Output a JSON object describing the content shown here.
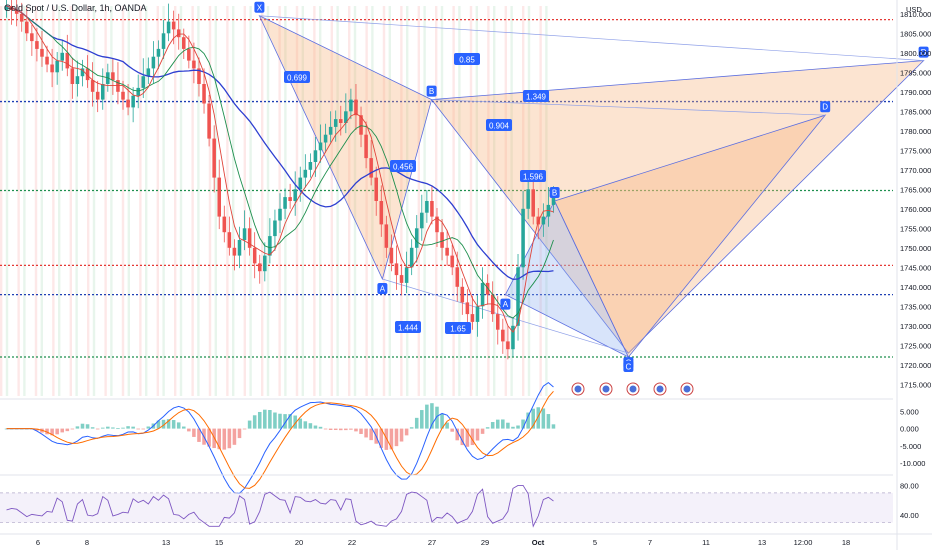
{
  "header": {
    "title": "Gold Spot / U.S. Dollar, 1h, OANDA",
    "currency": "USD"
  },
  "colors": {
    "up_candle": "#26a69a",
    "down_candle": "#ef5350",
    "ma_blue": "#2e3fd1",
    "ma_green": "#1e8f4e",
    "ma_red": "#e0443a",
    "pattern_orange": "#f7b27a",
    "pattern_blue": "#8fb3f0",
    "label_bg": "#2962ff",
    "rsi_line": "#7e57c2",
    "macd_line": "#2962ff",
    "signal_line": "#ff6d00"
  },
  "chart_data": {
    "type": "candlestick",
    "price_axis": {
      "ticks": [
        1810,
        1805,
        1800,
        1795,
        1790,
        1785,
        1780,
        1775,
        1770,
        1765,
        1760,
        1755,
        1750,
        1745,
        1740,
        1735,
        1730,
        1725,
        1720,
        1715
      ],
      "tick_labels": [
        "1810.000",
        "1805.000",
        "1800.000",
        "1795.000",
        "1790.000",
        "1785.000",
        "1780.000",
        "1775.000",
        "1770.000",
        "1765.000",
        "1760.000",
        "1755.000",
        "1750.000",
        "1745.000",
        "1740.000",
        "1735.000",
        "1730.000",
        "1725.000",
        "1720.000",
        "1715.000"
      ],
      "ylim": [
        1712,
        1812
      ]
    },
    "time_axis": {
      "labels": [
        "6",
        "8",
        "13",
        "15",
        "20",
        "22",
        "27",
        "29",
        "Oct",
        "5",
        "7",
        "11",
        "13",
        "12:00",
        "18"
      ]
    },
    "horizontal_levels": [
      {
        "price": 1808.5,
        "color": "#e53935"
      },
      {
        "price": 1787.5,
        "color": "#1e3fb4"
      },
      {
        "price": 1764.7,
        "color": "#1e8f4e"
      },
      {
        "price": 1745.5,
        "color": "#e53935"
      },
      {
        "price": 1738.0,
        "color": "#1e3fb4"
      },
      {
        "price": 1722.0,
        "color": "#1e8f4e"
      }
    ],
    "harmonic_points": [
      {
        "label": "X",
        "price": 1809.5,
        "time_index": 15
      },
      {
        "label": "A",
        "price": 1742.0,
        "time_index": 20
      },
      {
        "label": "B",
        "price": 1788.0,
        "time_index": 22
      },
      {
        "label": "C",
        "price": 1723.0,
        "time_index": 30
      },
      {
        "label": "D",
        "price": 1798.0,
        "time_index": 42
      },
      {
        "label": "A",
        "price": 1738.0,
        "time_index": 25
      },
      {
        "label": "B",
        "price": 1762.0,
        "time_index": 27
      },
      {
        "label": "C",
        "price": 1722.0,
        "time_index": 30
      },
      {
        "label": "D",
        "price": 1784.0,
        "time_index": 38
      }
    ],
    "ratio_labels": [
      "0.699",
      "0.85",
      "1.349",
      "0.904",
      "0.456",
      "1.596",
      "1.444",
      "1.65"
    ],
    "closes": [
      1812,
      1811,
      1810,
      1808,
      1805,
      1803,
      1801,
      1799,
      1797,
      1795,
      1798,
      1800,
      1796,
      1792,
      1794,
      1796,
      1793,
      1790,
      1788,
      1792,
      1795,
      1793,
      1790,
      1788,
      1786,
      1789,
      1791,
      1794,
      1796,
      1799,
      1801,
      1805,
      1808,
      1806,
      1804,
      1801,
      1798,
      1796,
      1792,
      1787,
      1778,
      1768,
      1758,
      1754,
      1750,
      1748,
      1752,
      1755,
      1750,
      1746,
      1744,
      1748,
      1753,
      1757,
      1760,
      1763,
      1762,
      1765,
      1768,
      1770,
      1772,
      1775,
      1777,
      1779,
      1781,
      1783,
      1782,
      1785,
      1788,
      1784,
      1779,
      1773,
      1768,
      1762,
      1756,
      1750,
      1746,
      1743,
      1741,
      1745,
      1750,
      1755,
      1759,
      1762,
      1758,
      1754,
      1750,
      1748,
      1745,
      1740,
      1736,
      1733,
      1731,
      1735,
      1741,
      1738,
      1733,
      1729,
      1726,
      1724,
      1730,
      1745,
      1760,
      1765,
      1758,
      1756,
      1758,
      1761,
      1763
    ],
    "macd_axis": {
      "ticks": [
        5,
        0,
        -5,
        -10
      ],
      "tick_labels": [
        "5.000",
        "0.000",
        "-5.000",
        "-10.000"
      ],
      "ylim": [
        -12,
        8
      ]
    },
    "rsi_axis": {
      "ticks": [
        80,
        40
      ],
      "tick_labels": [
        "80.00",
        "40.00"
      ],
      "ylim": [
        20,
        90
      ]
    }
  }
}
